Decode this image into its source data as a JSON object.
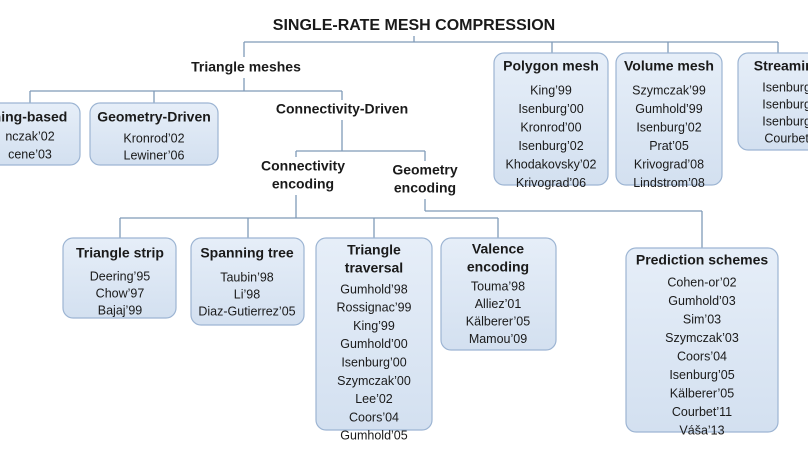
{
  "title": "SINGLE-RATE MESH COMPRESSION",
  "nodes": [
    {
      "label": [
        "Triangle meshes"
      ],
      "entries": []
    },
    {
      "label": [
        "hing-based"
      ],
      "entries": [
        "nczak’02",
        "cene’03"
      ]
    },
    {
      "label": [
        "Geometry-Driven"
      ],
      "entries": [
        "Kronrod’02",
        "Lewiner’06"
      ]
    },
    {
      "label": [
        "Connectivity-Driven"
      ],
      "entries": []
    },
    {
      "label": [
        "Polygon mesh"
      ],
      "entries": [
        "King’99",
        "Isenburg’00",
        "Kronrod’00",
        "Isenburg’02",
        "Khodakovsky’02",
        "Krivograd’06"
      ]
    },
    {
      "label": [
        "Volume mesh"
      ],
      "entries": [
        "Szymczak’99",
        "Gumhold’99",
        "Isenburg’02",
        "Prat’05",
        "Krivograd’08",
        "Lindstrom’08"
      ]
    },
    {
      "label": [
        "Streaming"
      ],
      "entries": [
        "Isenburg’",
        "Isenburg’",
        "Isenburg’",
        "Courbet’"
      ]
    },
    {
      "label": [
        "Connectivity",
        "encoding"
      ],
      "entries": []
    },
    {
      "label": [
        "Geometry",
        "encoding"
      ],
      "entries": []
    },
    {
      "label": [
        "Triangle strip"
      ],
      "entries": [
        "Deering’95",
        "Chow’97",
        "Bajaj’99"
      ]
    },
    {
      "label": [
        "Spanning tree"
      ],
      "entries": [
        "Taubin’98",
        "Li’98",
        "Diaz-Gutierrez’05"
      ]
    },
    {
      "label": [
        "Triangle",
        "traversal"
      ],
      "entries": [
        "Gumhold’98",
        "Rossignac’99",
        "King’99",
        "Gumhold’00",
        "Isenburg’00",
        "Szymczak’00",
        "Lee’02",
        "Coors’04",
        "Gumhold’05"
      ]
    },
    {
      "label": [
        "Valence",
        "encoding"
      ],
      "entries": [
        "Touma’98",
        "Alliez’01",
        "Kälberer’05",
        "Mamou’09"
      ]
    },
    {
      "label": [
        "Prediction schemes"
      ],
      "entries": [
        "Cohen-or’02",
        "Gumhold’03",
        "Sim’03",
        "Szymczak’03",
        "Coors’04",
        "Isenburg’05",
        "Kälberer’05",
        "Courbet’11",
        "Váša’13"
      ]
    }
  ]
}
